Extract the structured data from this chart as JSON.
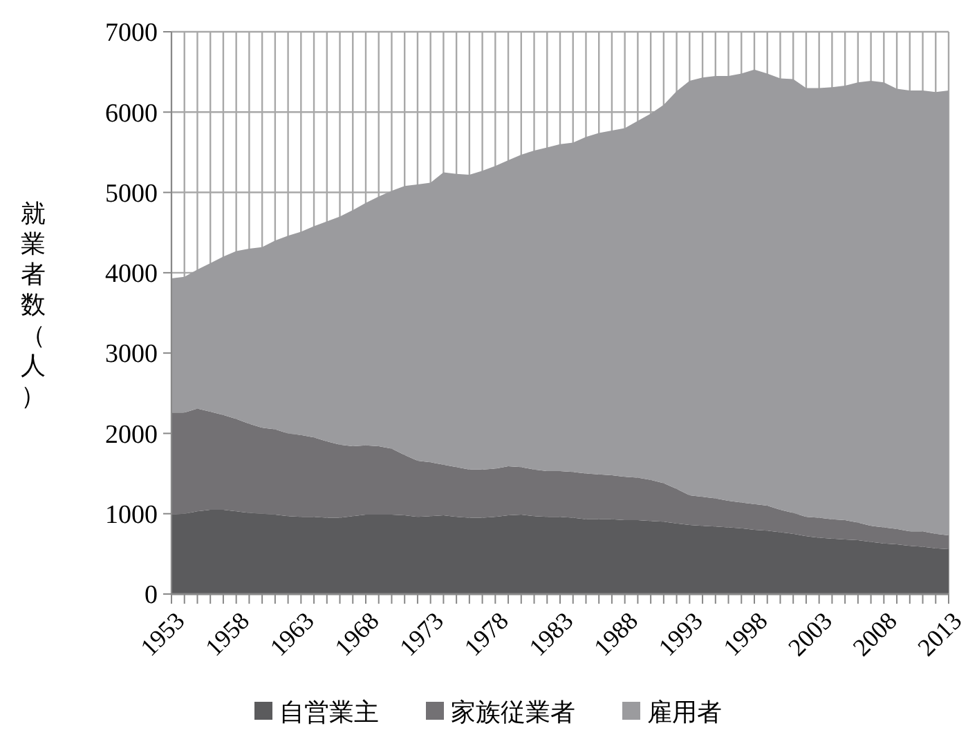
{
  "chart_data": {
    "type": "area",
    "stacked": true,
    "ylabel": "就業者数（人）",
    "x": [
      1953,
      1954,
      1955,
      1956,
      1957,
      1958,
      1959,
      1960,
      1961,
      1962,
      1963,
      1964,
      1965,
      1966,
      1967,
      1968,
      1969,
      1970,
      1971,
      1972,
      1973,
      1974,
      1975,
      1976,
      1977,
      1978,
      1979,
      1980,
      1981,
      1982,
      1983,
      1984,
      1985,
      1986,
      1987,
      1988,
      1989,
      1990,
      1991,
      1992,
      1993,
      1994,
      1995,
      1996,
      1997,
      1998,
      1999,
      2000,
      2001,
      2002,
      2003,
      2004,
      2005,
      2006,
      2007,
      2008,
      2009,
      2010,
      2011,
      2012,
      2013
    ],
    "series": [
      {
        "name": "自営業主",
        "color": "#5b5b5d",
        "values": [
          990,
          1000,
          1030,
          1050,
          1050,
          1030,
          1010,
          1000,
          990,
          970,
          960,
          960,
          950,
          950,
          970,
          990,
          990,
          990,
          980,
          960,
          970,
          980,
          960,
          950,
          950,
          960,
          980,
          990,
          970,
          960,
          960,
          950,
          930,
          930,
          930,
          920,
          920,
          910,
          900,
          880,
          860,
          850,
          840,
          830,
          820,
          800,
          790,
          770,
          750,
          720,
          700,
          690,
          680,
          670,
          650,
          630,
          620,
          600,
          590,
          570,
          560
        ]
      },
      {
        "name": "家族従業者",
        "color": "#737174",
        "values": [
          1270,
          1260,
          1280,
          1220,
          1180,
          1150,
          1110,
          1070,
          1060,
          1030,
          1020,
          990,
          950,
          910,
          870,
          860,
          850,
          820,
          750,
          700,
          670,
          630,
          620,
          600,
          600,
          600,
          610,
          590,
          580,
          570,
          570,
          570,
          570,
          560,
          550,
          540,
          530,
          510,
          480,
          430,
          370,
          360,
          350,
          330,
          320,
          320,
          310,
          280,
          260,
          240,
          250,
          240,
          240,
          220,
          200,
          200,
          190,
          180,
          190,
          180,
          170
        ]
      },
      {
        "name": "雇用者",
        "color": "#9b9b9e",
        "values": [
          1670,
          1690,
          1730,
          1850,
          1970,
          2090,
          2180,
          2250,
          2350,
          2460,
          2530,
          2630,
          2740,
          2840,
          2940,
          3020,
          3110,
          3210,
          3350,
          3440,
          3480,
          3640,
          3650,
          3670,
          3720,
          3770,
          3810,
          3890,
          3970,
          4030,
          4070,
          4100,
          4190,
          4250,
          4290,
          4340,
          4440,
          4560,
          4710,
          4950,
          5160,
          5220,
          5260,
          5290,
          5340,
          5410,
          5380,
          5370,
          5400,
          5340,
          5350,
          5380,
          5410,
          5480,
          5540,
          5540,
          5480,
          5490,
          5490,
          5500,
          5540
        ]
      }
    ],
    "xlim": [
      1953,
      2013
    ],
    "xticks": [
      1953,
      {
        "value": 1954,
        "label": null
      },
      {
        "value": 1955,
        "label": null
      },
      {
        "value": 1956,
        "label": null
      },
      {
        "value": 1957,
        "label": null
      },
      1958,
      {
        "value": 1959,
        "label": null
      },
      {
        "value": 1960,
        "label": null
      },
      {
        "value": 1961,
        "label": null
      },
      {
        "value": 1962,
        "label": null
      },
      1963,
      {
        "value": 1964,
        "label": null
      },
      {
        "value": 1965,
        "label": null
      },
      {
        "value": 1966,
        "label": null
      },
      {
        "value": 1967,
        "label": null
      },
      1968,
      {
        "value": 1969,
        "label": null
      },
      {
        "value": 1970,
        "label": null
      },
      {
        "value": 1971,
        "label": null
      },
      {
        "value": 1972,
        "label": null
      },
      1973,
      {
        "value": 1974,
        "label": null
      },
      {
        "value": 1975,
        "label": null
      },
      {
        "value": 1976,
        "label": null
      },
      {
        "value": 1977,
        "label": null
      },
      1978,
      {
        "value": 1979,
        "label": null
      },
      {
        "value": 1980,
        "label": null
      },
      {
        "value": 1981,
        "label": null
      },
      {
        "value": 1982,
        "label": null
      },
      1983,
      {
        "value": 1984,
        "label": null
      },
      {
        "value": 1985,
        "label": null
      },
      {
        "value": 1986,
        "label": null
      },
      {
        "value": 1987,
        "label": null
      },
      1988,
      {
        "value": 1989,
        "label": null
      },
      {
        "value": 1990,
        "label": null
      },
      {
        "value": 1991,
        "label": null
      },
      {
        "value": 1992,
        "label": null
      },
      1993,
      {
        "value": 1994,
        "label": null
      },
      {
        "value": 1995,
        "label": null
      },
      {
        "value": 1996,
        "label": null
      },
      {
        "value": 1997,
        "label": null
      },
      1998,
      {
        "value": 1999,
        "label": null
      },
      {
        "value": 2000,
        "label": null
      },
      {
        "value": 2001,
        "label": null
      },
      {
        "value": 2002,
        "label": null
      },
      2003,
      {
        "value": 2004,
        "label": null
      },
      {
        "value": 2005,
        "label": null
      },
      {
        "value": 2006,
        "label": null
      },
      {
        "value": 2007,
        "label": null
      },
      2008,
      {
        "value": 2009,
        "label": null
      },
      {
        "value": 2010,
        "label": null
      },
      {
        "value": 2011,
        "label": null
      },
      {
        "value": 2012,
        "label": null
      },
      2013
    ],
    "ylim": [
      0,
      7000
    ],
    "yticks": [
      0,
      1000,
      2000,
      3000,
      4000,
      5000,
      6000,
      7000
    ],
    "grid": true,
    "legend": "bottom"
  }
}
